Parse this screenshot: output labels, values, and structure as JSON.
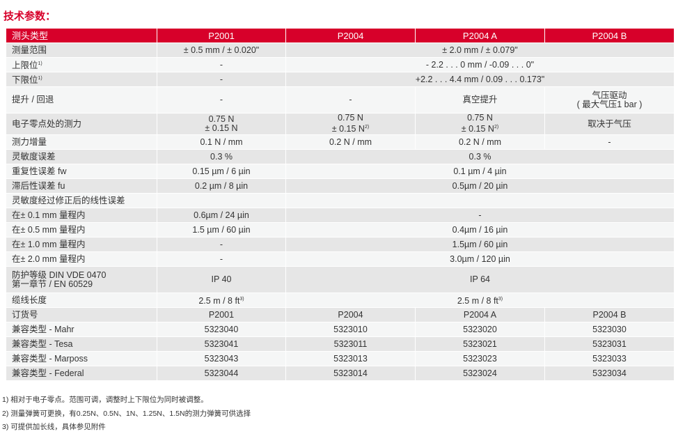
{
  "title": "技术参数：",
  "header": [
    "测头类型",
    "P2001",
    "P2004",
    "P2004 A",
    "P2004 B"
  ],
  "rows": [
    {
      "label": "测量范围",
      "cells": [
        {
          "text": "± 0.5 mm / ± 0.020\""
        },
        {
          "text": "± 2.0 mm / ± 0.079\"",
          "span": 4
        }
      ]
    },
    {
      "label": "上限位",
      "sup": "1)",
      "cells": [
        {
          "text": "-"
        },
        {
          "text": "- 2.2 . . . 0 mm / -0.09 . . . 0\"",
          "span": 4
        }
      ]
    },
    {
      "label": "下限位",
      "sup": "1)",
      "cells": [
        {
          "text": "-"
        },
        {
          "text": "+2.2 . . . 4.4 mm / 0.09 . . . 0.173\"",
          "span": 4
        }
      ]
    },
    {
      "label": "提升 / 回退",
      "size": "tall",
      "cells": [
        {
          "text": "-"
        },
        {
          "text": "-"
        },
        {
          "text": "真空提升"
        },
        {
          "text": "气压驱动",
          "text2": "( 最大气压1 bar )"
        }
      ]
    },
    {
      "label": "电子零点处的测力",
      "size": "mid",
      "cells": [
        {
          "text": "0.75 N",
          "text2": "± 0.15 N"
        },
        {
          "text": "0.75 N",
          "text2": "± 0.15 N",
          "sup": "2)"
        },
        {
          "text": "0.75 N",
          "text2": "± 0.15 N",
          "sup": "2)"
        },
        {
          "text": "取决于气压"
        }
      ]
    },
    {
      "label": "测力增量",
      "cells": [
        {
          "text": "0.1 N / mm"
        },
        {
          "text": "0.2 N / mm"
        },
        {
          "text": "0.2 N / mm"
        },
        {
          "text": "-"
        }
      ]
    },
    {
      "label": "灵敏度误差",
      "cells": [
        {
          "text": "0.3 %"
        },
        {
          "text": "0.3 %",
          "span": 4
        }
      ]
    },
    {
      "label": "重复性误差 fw",
      "cells": [
        {
          "text": "0.15 µm / 6 µin"
        },
        {
          "text": "0.1 µm / 4 µin",
          "span": 4
        }
      ]
    },
    {
      "label": "滞后性误差 fu",
      "cells": [
        {
          "text": "0.2 µm / 8 µin"
        },
        {
          "text": "0.5µm / 20 µin",
          "span": 4
        }
      ]
    },
    {
      "label": "灵敏度经过修正后的线性误差",
      "cells": [
        {
          "text": ""
        },
        {
          "text": "",
          "span": 4
        }
      ]
    },
    {
      "label": "在± 0.1 mm 量程内",
      "cells": [
        {
          "text": "0.6µm  / 24 µin"
        },
        {
          "text": "-",
          "span": 4
        }
      ]
    },
    {
      "label": "在± 0.5 mm 量程内",
      "cells": [
        {
          "text": "1.5 µm / 60 µin"
        },
        {
          "text": "0.4µm / 16 µin",
          "span": 4
        }
      ]
    },
    {
      "label": "在± 1.0 mm 量程内",
      "cells": [
        {
          "text": "-"
        },
        {
          "text": "1.5µm / 60 µin",
          "span": 4
        }
      ]
    },
    {
      "label": "在± 2.0 mm 量程内",
      "cells": [
        {
          "text": "-"
        },
        {
          "text": "3.0µm / 120 µin",
          "span": 4
        }
      ]
    },
    {
      "label": "防护等级 DIN VDE 0470",
      "label2": "第一章节 / EN 60529",
      "size": "tall",
      "cells": [
        {
          "text": "IP 40"
        },
        {
          "text": "IP 64",
          "span": 4
        }
      ]
    },
    {
      "label": "缆线长度",
      "cells": [
        {
          "text": "2.5 m / 8 ft",
          "sup": "3)"
        },
        {
          "text": "2.5 m / 8 ft",
          "sup": "3)",
          "span": 4
        }
      ]
    },
    {
      "label": "订货号",
      "cells": [
        {
          "text": "P2001"
        },
        {
          "text": "P2004"
        },
        {
          "text": "P2004 A"
        },
        {
          "text": "P2004 B"
        }
      ]
    },
    {
      "label": "兼容类型 - Mahr",
      "cells": [
        {
          "text": "5323040"
        },
        {
          "text": "5323010"
        },
        {
          "text": "5323020"
        },
        {
          "text": "5323030"
        }
      ]
    },
    {
      "label": "兼容类型 - Tesa",
      "cells": [
        {
          "text": "5323041"
        },
        {
          "text": "5323011"
        },
        {
          "text": "5323021"
        },
        {
          "text": "5323031"
        }
      ]
    },
    {
      "label": "兼容类型 - Marposs",
      "cells": [
        {
          "text": "5323043"
        },
        {
          "text": "5323013"
        },
        {
          "text": "5323023"
        },
        {
          "text": "5323033"
        }
      ]
    },
    {
      "label": "兼容类型 - Federal",
      "cells": [
        {
          "text": "5323044"
        },
        {
          "text": "5323014"
        },
        {
          "text": "5323024"
        },
        {
          "text": "5323034"
        }
      ]
    }
  ],
  "footnotes": [
    "1) 相对于电子零点。范围可调，调整时上下限位为同时被调整。",
    "2) 测量弹簧可更换，有0.25N、0.5N、1N、1.25N、1.5N的测力弹簧可供选择",
    "3) 可提供加长线，具体参见附件"
  ],
  "colors": {
    "accent": "#d7002a",
    "row_dark": "#e6e6e6",
    "row_light": "#f5f6f6"
  }
}
